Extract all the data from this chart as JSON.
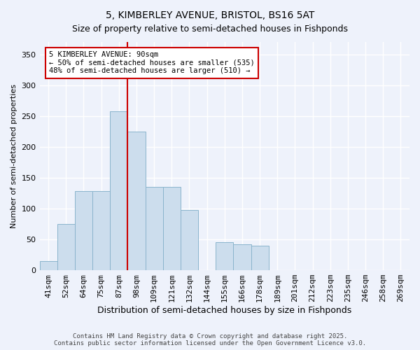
{
  "title1": "5, KIMBERLEY AVENUE, BRISTOL, BS16 5AT",
  "title2": "Size of property relative to semi-detached houses in Fishponds",
  "xlabel": "Distribution of semi-detached houses by size in Fishponds",
  "ylabel": "Number of semi-detached properties",
  "bar_labels": [
    "41sqm",
    "52sqm",
    "64sqm",
    "75sqm",
    "87sqm",
    "98sqm",
    "109sqm",
    "121sqm",
    "132sqm",
    "144sqm",
    "155sqm",
    "166sqm",
    "178sqm",
    "189sqm",
    "201sqm",
    "212sqm",
    "223sqm",
    "235sqm",
    "246sqm",
    "258sqm",
    "269sqm"
  ],
  "bar_values": [
    15,
    75,
    128,
    128,
    258,
    225,
    135,
    135,
    98,
    0,
    45,
    42,
    40,
    0,
    0,
    0,
    0,
    0,
    0,
    0,
    0
  ],
  "bar_color": "#ccdded",
  "bar_edge_color": "#8ab4cc",
  "vline_index": 4.5,
  "vline_color": "#cc0000",
  "annotation_text": "5 KIMBERLEY AVENUE: 90sqm\n← 50% of semi-detached houses are smaller (535)\n48% of semi-detached houses are larger (510) →",
  "annotation_box_facecolor": "#ffffff",
  "annotation_box_edgecolor": "#cc0000",
  "ylim": [
    0,
    370
  ],
  "yticks": [
    0,
    50,
    100,
    150,
    200,
    250,
    300,
    350
  ],
  "background_color": "#eef2fb",
  "grid_color": "#ffffff",
  "footer": "Contains HM Land Registry data © Crown copyright and database right 2025.\nContains public sector information licensed under the Open Government Licence v3.0.",
  "title_fontsize": 10,
  "subtitle_fontsize": 9,
  "ylabel_fontsize": 8,
  "xlabel_fontsize": 9,
  "tick_fontsize": 8
}
